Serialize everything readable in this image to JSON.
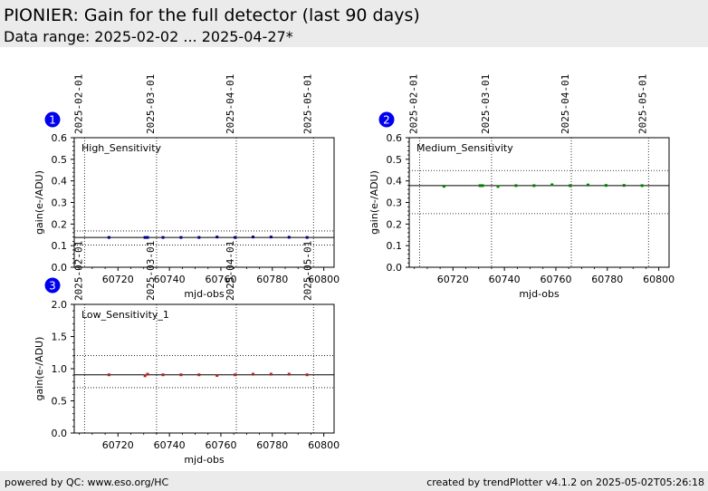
{
  "header": {
    "title": "PIONIER: Gain for the full detector (last 90 days)",
    "subtitle": "Data range: 2025-02-02 ... 2025-04-27*"
  },
  "footer": {
    "left": "powered by QC: www.eso.org/HC",
    "right": "created by trendPlotter v4.1.2 on 2025-05-02T05:26:18"
  },
  "chart_data": [
    {
      "type": "scatter",
      "panel_number": "1",
      "title": "High_Sensitivity",
      "xlabel": "mjd-obs",
      "ylabel": "gain(e-/ADU)",
      "xlim": [
        60703,
        60804
      ],
      "ylim": [
        0.0,
        0.6
      ],
      "x_ticks": [
        60720,
        60740,
        60760,
        60780,
        60800
      ],
      "y_ticks": [
        0.0,
        0.1,
        0.2,
        0.3,
        0.4,
        0.5,
        0.6
      ],
      "y_tick_labels": [
        "0.0",
        "0.1",
        "0.2",
        "0.3",
        "0.4",
        "0.5",
        "0.6"
      ],
      "date_markers": [
        {
          "label": "2025-02-01",
          "mjd": 60707
        },
        {
          "label": "2025-03-01",
          "mjd": 60735
        },
        {
          "label": "2025-04-01",
          "mjd": 60766
        },
        {
          "label": "2025-05-01",
          "mjd": 60796
        }
      ],
      "reference_line": 0.138,
      "limit_lines": [
        0.103,
        0.168
      ],
      "point_color": "#00008b",
      "series": [
        {
          "x": [
            60716.5,
            60730.5,
            60731.5,
            60737.5,
            60744.5,
            60751.5,
            60758.5,
            60765.5,
            60772.5,
            60779.5,
            60786.5,
            60793.5
          ],
          "y": [
            0.138,
            0.138,
            0.138,
            0.138,
            0.138,
            0.138,
            0.14,
            0.138,
            0.14,
            0.14,
            0.139,
            0.138
          ]
        }
      ]
    },
    {
      "type": "scatter",
      "panel_number": "2",
      "title": "Medium_Sensitivity",
      "xlabel": "mjd-obs",
      "ylabel": "gain(e-/ADU)",
      "xlim": [
        60703,
        60804
      ],
      "ylim": [
        0.0,
        0.6
      ],
      "x_ticks": [
        60720,
        60740,
        60760,
        60780,
        60800
      ],
      "y_ticks": [
        0.0,
        0.1,
        0.2,
        0.3,
        0.4,
        0.5,
        0.6
      ],
      "y_tick_labels": [
        "0.0",
        "0.1",
        "0.2",
        "0.3",
        "0.4",
        "0.5",
        "0.6"
      ],
      "date_markers": [
        {
          "label": "2025-02-01",
          "mjd": 60707
        },
        {
          "label": "2025-03-01",
          "mjd": 60735
        },
        {
          "label": "2025-04-01",
          "mjd": 60766
        },
        {
          "label": "2025-05-01",
          "mjd": 60796
        }
      ],
      "reference_line": 0.378,
      "limit_lines": [
        0.248,
        0.448
      ],
      "point_color": "#008000",
      "series": [
        {
          "x": [
            60716.5,
            60730.5,
            60731.5,
            60737.5,
            60744.5,
            60751.5,
            60758.5,
            60765.5,
            60772.5,
            60779.5,
            60786.5,
            60793.5
          ],
          "y": [
            0.375,
            0.378,
            0.378,
            0.374,
            0.378,
            0.378,
            0.382,
            0.378,
            0.381,
            0.379,
            0.379,
            0.378
          ]
        }
      ]
    },
    {
      "type": "scatter",
      "panel_number": "3",
      "title": "Low_Sensitivity_1",
      "xlabel": "mjd-obs",
      "ylabel": "gain(e-/ADU)",
      "xlim": [
        60703,
        60804
      ],
      "ylim": [
        0.0,
        2.0
      ],
      "x_ticks": [
        60720,
        60740,
        60760,
        60780,
        60800
      ],
      "y_ticks": [
        0.0,
        0.5,
        1.0,
        1.5,
        2.0
      ],
      "y_tick_labels": [
        "0.0",
        "0.5",
        "1.0",
        "1.5",
        "2.0"
      ],
      "date_markers": [
        {
          "label": "2025-02-01",
          "mjd": 60707
        },
        {
          "label": "2025-03-01",
          "mjd": 60735
        },
        {
          "label": "2025-04-01",
          "mjd": 60766
        },
        {
          "label": "2025-05-01",
          "mjd": 60796
        }
      ],
      "reference_line": 0.905,
      "limit_lines": [
        0.705,
        1.205
      ],
      "point_color": "#b22222",
      "series": [
        {
          "x": [
            60716.5,
            60730.5,
            60731.5,
            60737.5,
            60744.5,
            60751.5,
            60758.5,
            60765.5,
            60772.5,
            60779.5,
            60786.5,
            60793.5
          ],
          "y": [
            0.905,
            0.89,
            0.915,
            0.905,
            0.905,
            0.905,
            0.895,
            0.905,
            0.915,
            0.915,
            0.915,
            0.905
          ]
        }
      ]
    }
  ]
}
